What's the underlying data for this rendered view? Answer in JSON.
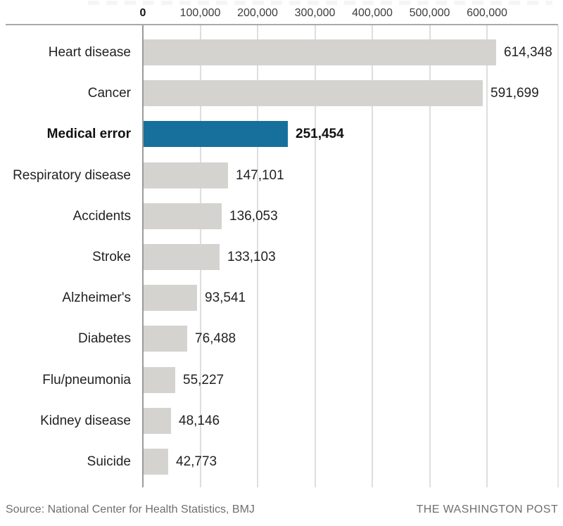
{
  "footer": {
    "source": "Source: National Center for Health Statistics, BMJ",
    "brand": "THE WASHINGTON POST"
  },
  "chart_data": {
    "type": "bar",
    "orientation": "horizontal",
    "title": "",
    "xlabel": "",
    "ylabel": "",
    "xlim": [
      0,
      724000
    ],
    "grid": true,
    "x_ticks": [
      0,
      100000,
      200000,
      300000,
      400000,
      500000,
      600000
    ],
    "x_tick_labels": [
      "0",
      "100,000",
      "200,000",
      "300,000",
      "400,000",
      "500,000",
      "600,000"
    ],
    "categories": [
      "Heart disease",
      "Cancer",
      "Medical error",
      "Respiratory disease",
      "Accidents",
      "Stroke",
      "Alzheimer's",
      "Diabetes",
      "Flu/pneumonia",
      "Kidney disease",
      "Suicide"
    ],
    "values": [
      614348,
      591699,
      251454,
      147101,
      136053,
      133103,
      93541,
      76488,
      55227,
      48146,
      42773
    ],
    "value_labels": [
      "614,348",
      "591,699",
      "251,454",
      "147,101",
      "136,053",
      "133,103",
      "93,541",
      "76,488",
      "55,227",
      "48,146",
      "42,773"
    ],
    "emphasized_category": "Medical error",
    "emphasized_index": 2,
    "colors": {
      "bar": "#d4d3cf",
      "bar_emphasis": "#17709b",
      "label_text": "#222222",
      "tick_text": "#3c3c3c",
      "gridline": "#dedede",
      "zero_line": "#9a9a9a",
      "footer_text": "#6f6f6f"
    }
  }
}
